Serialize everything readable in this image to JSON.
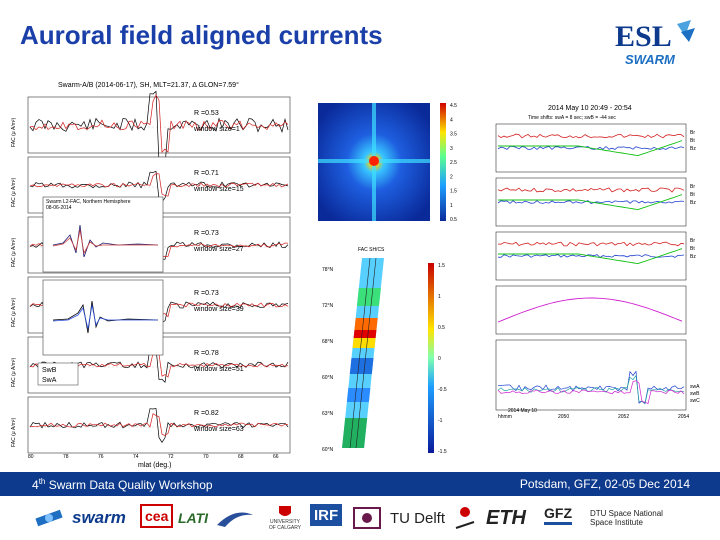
{
  "slide": {
    "title": "Auroral field aligned currents",
    "esl_logo": {
      "top": "ESL",
      "bottom": "SWARM"
    },
    "footer": {
      "workshop_sup": "th",
      "workshop_num": "4",
      "workshop_text": "Swarm Data Quality Workshop",
      "location": "Potsdam, GFZ, 02-05 Dec 2014"
    }
  },
  "left_figure": {
    "title": "Swarm-A/B (2014-06-17), SH, MLT=21.37, Δ GLON=7.59°",
    "xlabel": "mlat (deg.)",
    "xticks": [
      "80",
      "78",
      "76",
      "74",
      "72",
      "70",
      "68",
      "66"
    ],
    "panels": [
      {
        "ylabel": "FAC (μ A/m²)",
        "r_value": "R  =0.53",
        "window": "window size=1"
      },
      {
        "ylabel": "FAC (μ A/m²)",
        "r_value": "R  =0.71",
        "window": "window size=15"
      },
      {
        "ylabel": "FAC (μ A/m²)",
        "r_value": "R  =0.73",
        "window": "window size=27"
      },
      {
        "ylabel": "FAC (μ A/m²)",
        "r_value": "R  =0.73",
        "window": "window size=39"
      },
      {
        "ylabel": "FAC (μ A/m²)",
        "r_value": "R  =0.78",
        "window": "window size=51"
      },
      {
        "ylabel": "FAC (μ A/m²)",
        "r_value": "R  =0.82",
        "window": "window size=63"
      }
    ],
    "legend": [
      "SwB",
      "SwA"
    ],
    "inset1_title": "Swarm L2-FAC, Northern Hemisphere",
    "inset1_date": "08-06-2014"
  },
  "middle_top": {
    "colorbar_ticks": [
      "4.5",
      "4",
      "3.5",
      "3",
      "2.5",
      "2",
      "1.5",
      "1",
      "0.5"
    ]
  },
  "middle_bottom": {
    "title": "FAC SH/CS",
    "lat_labels": [
      "78°N",
      "72°N",
      "68°N",
      "60°N",
      "63°N",
      "60°N"
    ],
    "colorbar_ticks": [
      "1.5",
      "1",
      "0.5",
      "0",
      "-0.5",
      "-1",
      "-1.5"
    ]
  },
  "right_figure": {
    "title": "2014 May 10  20:49 - 20:54",
    "timeshift": "Time shifts: swA = 8 sec; swB = -44 sec",
    "panel_labels": [
      "Br",
      "Bt",
      "Bz"
    ],
    "bottom_legend": [
      "swA",
      "swB",
      "swC"
    ],
    "xticks": [
      "hhmm",
      "2050",
      "2052",
      "2054"
    ],
    "footer_row": "2014 May 10"
  },
  "logos": [
    "swarm",
    "cea",
    "LATI",
    "UNIVERSITY OF CALGARY",
    "IRF",
    "TU Delft",
    "ETH",
    "GFZ",
    "DTU Space National Space Institute"
  ]
}
